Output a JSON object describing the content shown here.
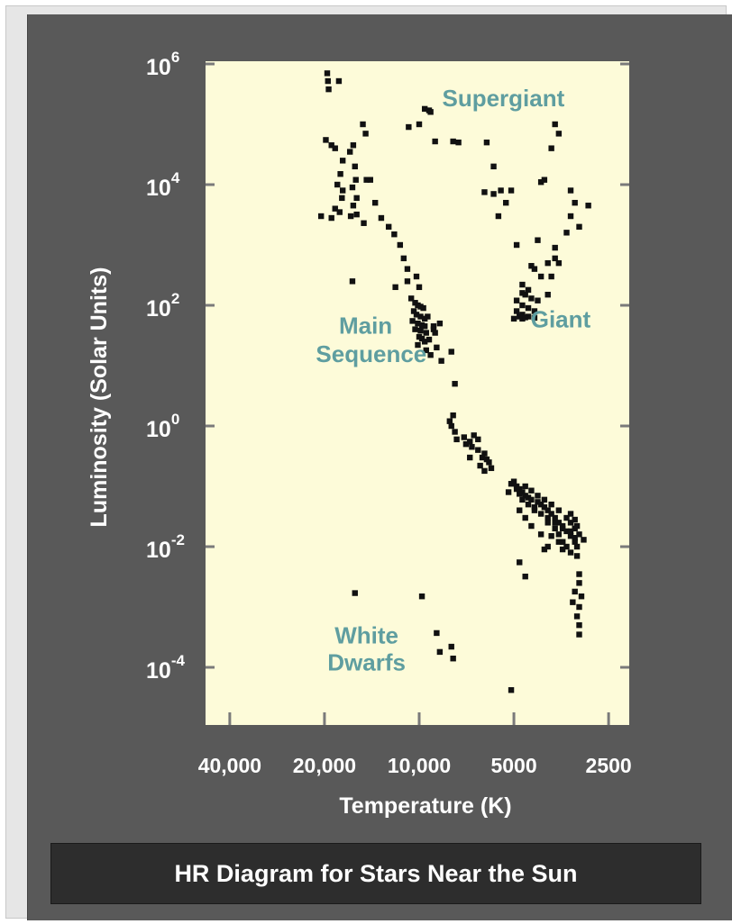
{
  "colors": {
    "panel": "#595959",
    "plot_background": "#fdfbd9",
    "points": "#111111",
    "region_labels": "#5f9ea0",
    "text": "#ffffff",
    "caption_bar": "#2d2d2d"
  },
  "caption": "HR Diagram for Stars Near the Sun",
  "chart_data": {
    "type": "scatter",
    "title": "HR Diagram for Stars Near the Sun",
    "xlabel": "Temperature (K)",
    "ylabel": "Luminosity (Solar Units)",
    "x_scale": "log, reversed (hot stars on the left)",
    "y_scale": "log",
    "xlim": [
      45000,
      2200
    ],
    "ylim": [
      8e-06,
      1000000
    ],
    "x_ticks": [
      {
        "value": 40000,
        "label": "40,000"
      },
      {
        "value": 20000,
        "label": "20,000"
      },
      {
        "value": 10000,
        "label": "10,000"
      },
      {
        "value": 5000,
        "label": "5000"
      },
      {
        "value": 2500,
        "label": "2500"
      }
    ],
    "y_ticks": [
      {
        "value": 1000000,
        "base": "10",
        "exp": "6"
      },
      {
        "value": 10000,
        "base": "10",
        "exp": "4"
      },
      {
        "value": 100,
        "base": "10",
        "exp": "2"
      },
      {
        "value": 1,
        "base": "10",
        "exp": "0"
      },
      {
        "value": 0.01,
        "base": "10",
        "exp": "-2"
      },
      {
        "value": 0.0001,
        "base": "10",
        "exp": "-4"
      }
    ],
    "annotations": [
      {
        "text": "Supergiant",
        "anchor_T": 5400,
        "anchor_L": 200000
      },
      {
        "text": "Giant",
        "anchor_T": 3550,
        "anchor_L": 43
      },
      {
        "text": "Main",
        "anchor_T": 14800,
        "anchor_L": 34
      },
      {
        "text": "Sequence",
        "anchor_T": 14200,
        "anchor_L": 11.5
      },
      {
        "text": "White",
        "anchor_T": 14700,
        "anchor_L": 0.00025
      },
      {
        "text": "Dwarfs",
        "anchor_T": 14700,
        "anchor_L": 8.8e-05
      }
    ],
    "grid": false,
    "legend": "none",
    "points": [
      [
        19600,
        700000
      ],
      [
        19500,
        520000
      ],
      [
        19400,
        380000
      ],
      [
        18000,
        520000
      ],
      [
        19800,
        55000
      ],
      [
        19000,
        45000
      ],
      [
        18500,
        40000
      ],
      [
        17500,
        25000
      ],
      [
        17800,
        15000
      ],
      [
        18200,
        10000
      ],
      [
        17500,
        8000
      ],
      [
        17600,
        6000
      ],
      [
        18500,
        4000
      ],
      [
        17900,
        3500
      ],
      [
        20500,
        3000
      ],
      [
        19000,
        2800
      ],
      [
        16200,
        45000
      ],
      [
        16600,
        35000
      ],
      [
        16000,
        20000
      ],
      [
        15900,
        12000
      ],
      [
        16300,
        9000
      ],
      [
        15800,
        6000
      ],
      [
        16200,
        4500
      ],
      [
        15800,
        3200
      ],
      [
        16500,
        3000
      ],
      [
        15000,
        2300
      ],
      [
        15100,
        100000
      ],
      [
        14800,
        70000
      ],
      [
        14300,
        12000
      ],
      [
        14700,
        12000
      ],
      [
        13800,
        5000
      ],
      [
        13200,
        2800
      ],
      [
        12500,
        2000
      ],
      [
        12000,
        1500
      ],
      [
        11500,
        1000
      ],
      [
        11200,
        600
      ],
      [
        10900,
        400
      ],
      [
        10200,
        300
      ],
      [
        10000,
        200
      ],
      [
        10900,
        250
      ],
      [
        16300,
        250
      ],
      [
        11900,
        200
      ],
      [
        9600,
        180000
      ],
      [
        9300,
        170000
      ],
      [
        9200,
        160000
      ],
      [
        10800,
        90000
      ],
      [
        10000,
        100000
      ],
      [
        8900,
        52000
      ],
      [
        7800,
        52000
      ],
      [
        7500,
        50000
      ],
      [
        10600,
        130
      ],
      [
        10300,
        110
      ],
      [
        10100,
        100
      ],
      [
        9900,
        95
      ],
      [
        9700,
        90
      ],
      [
        10400,
        80
      ],
      [
        10200,
        70
      ],
      [
        9900,
        65
      ],
      [
        9600,
        60
      ],
      [
        10500,
        55
      ],
      [
        10100,
        50
      ],
      [
        9800,
        47
      ],
      [
        9600,
        45
      ],
      [
        10300,
        40
      ],
      [
        9900,
        38
      ],
      [
        9500,
        35
      ],
      [
        10000,
        30
      ],
      [
        9800,
        28
      ],
      [
        9600,
        25
      ],
      [
        10100,
        22
      ],
      [
        9300,
        27
      ],
      [
        9000,
        40
      ],
      [
        8900,
        35
      ],
      [
        8600,
        50
      ],
      [
        9400,
        65
      ],
      [
        8800,
        20
      ],
      [
        9500,
        18
      ],
      [
        8500,
        12
      ],
      [
        9200,
        15
      ],
      [
        9000,
        45
      ],
      [
        7900,
        17
      ],
      [
        7700,
        5
      ],
      [
        7800,
        1.5
      ],
      [
        8000,
        1.2
      ],
      [
        7900,
        1.0
      ],
      [
        7700,
        0.8
      ],
      [
        7600,
        0.6
      ],
      [
        7100,
        0.5
      ],
      [
        6900,
        0.55
      ],
      [
        7200,
        0.65
      ],
      [
        6700,
        0.7
      ],
      [
        6500,
        0.6
      ],
      [
        6800,
        0.45
      ],
      [
        6500,
        0.4
      ],
      [
        6200,
        0.35
      ],
      [
        6300,
        0.3
      ],
      [
        6000,
        0.25
      ],
      [
        5900,
        0.2
      ],
      [
        6200,
        0.18
      ],
      [
        6400,
        0.22
      ],
      [
        6100,
        0.28
      ],
      [
        6900,
        0.3
      ],
      [
        6100,
        50000
      ],
      [
        5800,
        20000
      ],
      [
        5500,
        8000
      ],
      [
        5800,
        7000
      ],
      [
        6200,
        7500
      ],
      [
        5300,
        5000
      ],
      [
        5600,
        3000
      ],
      [
        4900,
        1000
      ],
      [
        5100,
        8000
      ],
      [
        4200,
        1200
      ],
      [
        4400,
        450
      ],
      [
        4100,
        11000
      ],
      [
        4000,
        12000
      ],
      [
        3700,
        100000
      ],
      [
        3800,
        40000
      ],
      [
        3600,
        70000
      ],
      [
        3300,
        8000
      ],
      [
        3200,
        5000
      ],
      [
        3300,
        3000
      ],
      [
        3100,
        2000
      ],
      [
        3400,
        1600
      ],
      [
        2900,
        4500
      ],
      [
        3700,
        600
      ],
      [
        3900,
        500
      ],
      [
        4300,
        400
      ],
      [
        4100,
        300
      ],
      [
        4700,
        220
      ],
      [
        4500,
        180
      ],
      [
        4700,
        160
      ],
      [
        4600,
        150
      ],
      [
        4400,
        130
      ],
      [
        4200,
        120
      ],
      [
        4900,
        120
      ],
      [
        4700,
        100
      ],
      [
        4500,
        90
      ],
      [
        4300,
        80
      ],
      [
        4900,
        80
      ],
      [
        4700,
        70
      ],
      [
        4500,
        65
      ],
      [
        4300,
        62
      ],
      [
        4700,
        60
      ],
      [
        5000,
        60
      ],
      [
        4800,
        65
      ],
      [
        4600,
        63
      ],
      [
        3800,
        300
      ],
      [
        3600,
        500
      ],
      [
        3900,
        150
      ],
      [
        3700,
        900
      ],
      [
        5000,
        0.12
      ],
      [
        4900,
        0.1
      ],
      [
        4800,
        0.09
      ],
      [
        4700,
        0.08
      ],
      [
        4600,
        0.07
      ],
      [
        4500,
        0.065
      ],
      [
        4400,
        0.06
      ],
      [
        4200,
        0.055
      ],
      [
        4100,
        0.05
      ],
      [
        4000,
        0.045
      ],
      [
        3900,
        0.04
      ],
      [
        3800,
        0.035
      ],
      [
        3700,
        0.03
      ],
      [
        3600,
        0.025
      ],
      [
        3500,
        0.02
      ],
      [
        3400,
        0.018
      ],
      [
        3300,
        0.015
      ],
      [
        3200,
        0.012
      ],
      [
        3150,
        0.01
      ],
      [
        4900,
        0.09
      ],
      [
        4700,
        0.06
      ],
      [
        4500,
        0.05
      ],
      [
        4300,
        0.04
      ],
      [
        4100,
        0.035
      ],
      [
        3900,
        0.03
      ],
      [
        3700,
        0.025
      ],
      [
        3500,
        0.022
      ],
      [
        3300,
        0.018
      ],
      [
        3200,
        0.014
      ],
      [
        4600,
        0.1
      ],
      [
        4400,
        0.085
      ],
      [
        4200,
        0.07
      ],
      [
        4000,
        0.06
      ],
      [
        3800,
        0.05
      ],
      [
        3600,
        0.04
      ],
      [
        3400,
        0.03
      ],
      [
        3300,
        0.025
      ],
      [
        3200,
        0.02
      ],
      [
        3100,
        0.016
      ],
      [
        4800,
        0.075
      ],
      [
        4300,
        0.045
      ],
      [
        3900,
        0.025
      ],
      [
        3600,
        0.016
      ],
      [
        3500,
        0.012
      ],
      [
        3400,
        0.01
      ],
      [
        3300,
        0.008
      ],
      [
        3150,
        0.007
      ],
      [
        3000,
        0.013
      ],
      [
        3700,
        0.02
      ],
      [
        3800,
        0.015
      ],
      [
        3600,
        0.012
      ],
      [
        3500,
        0.009
      ],
      [
        3900,
        0.01
      ],
      [
        4100,
        0.016
      ],
      [
        4400,
        0.022
      ],
      [
        4600,
        0.03
      ],
      [
        4800,
        0.04
      ],
      [
        5100,
        0.11
      ],
      [
        5200,
        0.08
      ],
      [
        3300,
        0.035
      ],
      [
        3200,
        0.028
      ],
      [
        3150,
        0.022
      ],
      [
        3100,
        0.0035
      ],
      [
        3100,
        0.0025
      ],
      [
        3200,
        0.0018
      ],
      [
        3050,
        0.0015
      ],
      [
        3100,
        0.001
      ],
      [
        3250,
        0.0012
      ],
      [
        3100,
        0.0005
      ],
      [
        3100,
        0.00035
      ],
      [
        3150,
        0.0007
      ],
      [
        4800,
        0.0055
      ],
      [
        4600,
        0.0032
      ],
      [
        4000,
        0.009
      ],
      [
        3500,
        0.012
      ],
      [
        16000,
        0.0017
      ],
      [
        9800,
        0.0015
      ],
      [
        8800,
        0.00037
      ],
      [
        7900,
        0.00022
      ],
      [
        8600,
        0.00018
      ],
      [
        7800,
        0.00014
      ],
      [
        5100,
        4.2e-05
      ]
    ]
  }
}
